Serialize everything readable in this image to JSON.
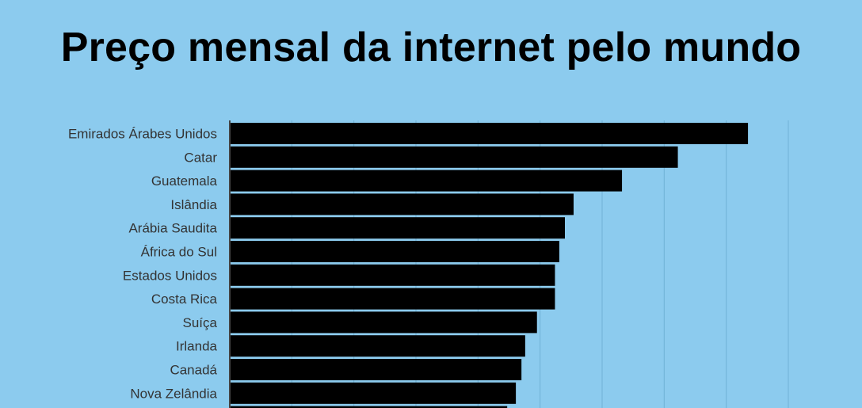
{
  "title": "Preço mensal da internet pelo mundo",
  "colors": {
    "background": "#8ccbee",
    "bar": "#000000",
    "grid": "#6fb2d6",
    "axis": "#444444"
  },
  "chart_data": {
    "type": "bar",
    "orientation": "horizontal",
    "title": "Preço mensal da internet pelo mundo",
    "xlabel": "",
    "ylabel": "",
    "xlim": [
      0,
      90
    ],
    "grid": true,
    "categories": [
      "Emirados Árabes Unidos",
      "Catar",
      "Guatemala",
      "Islândia",
      "Arábia Saudita",
      "África do Sul",
      "Estados Unidos",
      "Costa Rica",
      "Suíça",
      "Irlanda",
      "Canadá",
      "Nova Zelândia",
      ""
    ],
    "values": [
      83.5,
      72.2,
      63.2,
      55.4,
      54.0,
      53.1,
      52.4,
      52.4,
      49.5,
      47.6,
      47.0,
      46.1,
      44.7
    ]
  }
}
